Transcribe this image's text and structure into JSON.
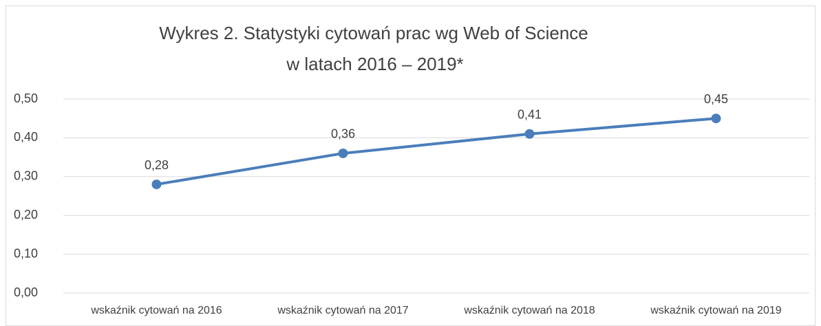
{
  "chart_data": {
    "type": "line",
    "title": [
      "Wykres 2. Statystyki cytowań prac wg Web of Science",
      "w latach 2016 – 2019*"
    ],
    "categories": [
      "wskaźnik cytowań na 2016",
      "wskaźnik cytowań na 2017",
      "wskaźnik cytowań na 2018",
      "wskaźnik cytowań na 2019"
    ],
    "series": [
      {
        "name": null,
        "color": "#4a7ebb",
        "values": [
          0.28,
          0.36,
          0.41,
          0.45
        ],
        "value_labels": [
          "0,28",
          "0,36",
          "0,41",
          "0,45"
        ]
      }
    ],
    "ylim": [
      0,
      0.5
    ],
    "yticks": [
      {
        "value": 0,
        "label": "0,00"
      },
      {
        "value": 0.1,
        "label": "0,10"
      },
      {
        "value": 0.2,
        "label": "0,20"
      },
      {
        "value": 0.3,
        "label": "0,30"
      },
      {
        "value": 0.4,
        "label": "0,40"
      },
      {
        "value": 0.5,
        "label": "0,50"
      }
    ],
    "grid": true
  }
}
